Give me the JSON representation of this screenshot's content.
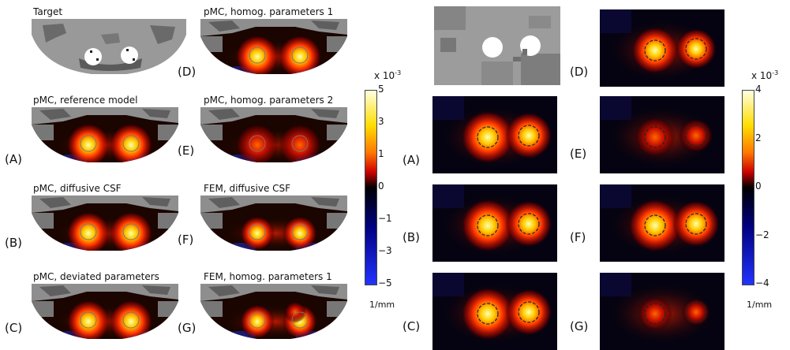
{
  "left_figure": {
    "titles": {
      "target": "Target",
      "ref": "pMC, reference model",
      "diff": "pMC, diffusive CSF",
      "dev": "pMC, deviated parameters",
      "hom1": "pMC, homog. parameters 1",
      "hom2": "pMC, homog. parameters 2",
      "femdiff": "FEM, diffusive CSF",
      "femhom": "FEM, homog. parameters 1"
    },
    "letters": {
      "A": "(A)",
      "B": "(B)",
      "C": "(C)",
      "D": "(D)",
      "E": "(E)",
      "F": "(F)",
      "G": "(G)"
    },
    "colorbar": {
      "exponent": "x 10",
      "exponent_power": "-3",
      "ticks": [
        "5",
        "3",
        "1",
        "0",
        "−1",
        "−3",
        "−5"
      ],
      "unit": "1/mm"
    }
  },
  "right_figure": {
    "letters": {
      "A": "(A)",
      "B": "(B)",
      "C": "(C)",
      "D": "(D)",
      "E": "(E)",
      "F": "(F)",
      "G": "(G)"
    },
    "colorbar": {
      "exponent": "x 10",
      "exponent_power": "-3",
      "ticks": [
        "4",
        "2",
        "0",
        "−2",
        "−4"
      ],
      "unit": "1/mm"
    }
  },
  "colors": {
    "hot_top": "#ffff66",
    "hot_mid": "#ff5500",
    "hot_low": "#aa0000",
    "zero": "#000000",
    "cold_low": "#0000aa",
    "cold_top": "#3344ff",
    "tissue_light": "#9a9a9a",
    "tissue_dark": "#555555"
  }
}
